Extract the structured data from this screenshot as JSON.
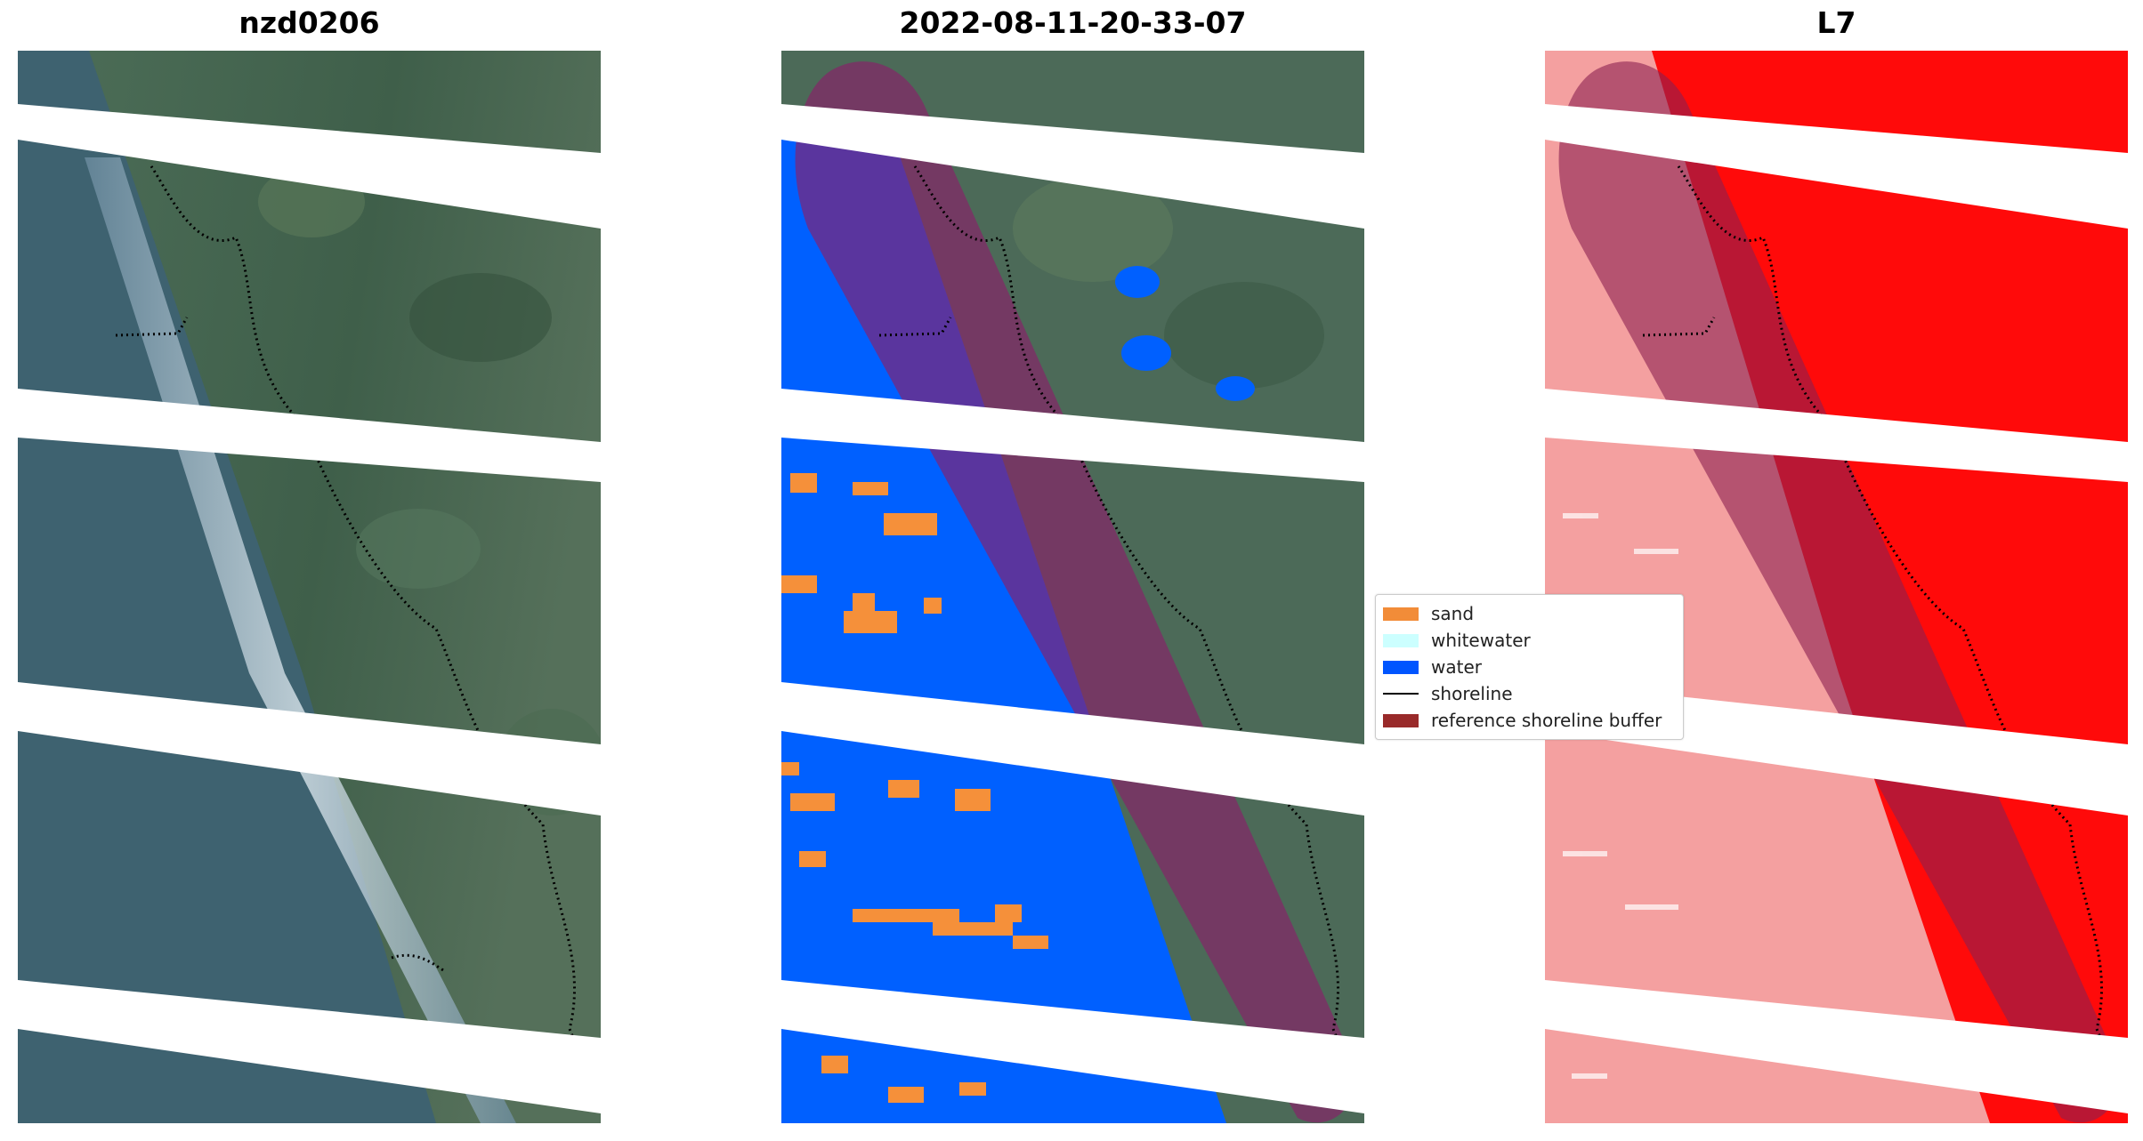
{
  "panels": [
    {
      "title": "nzd0206",
      "kind": "rgb"
    },
    {
      "title": "2022-08-11-20-33-07",
      "kind": "classified"
    },
    {
      "title": "L7",
      "kind": "index"
    }
  ],
  "legend": {
    "placement": "center",
    "items": [
      {
        "label": "sand",
        "type": "patch",
        "color": "#f28c38"
      },
      {
        "label": "whitewater",
        "type": "patch",
        "color": "#ccffff"
      },
      {
        "label": "water",
        "type": "patch",
        "color": "#0055ff"
      },
      {
        "label": "shoreline",
        "type": "line",
        "color": "#000000"
      },
      {
        "label": "reference shoreline buffer",
        "type": "patch",
        "color": "#992a2a"
      }
    ]
  },
  "colors": {
    "rgb_land": "#4a6a52",
    "rgb_water": "#3e6270",
    "rgb_surf": "#d8e4ec",
    "nodata": "#ffffff",
    "class_land": "#4c6a58",
    "class_water": "#0060ff",
    "class_sand": "#f5903a",
    "buffer": "#8b1f6a",
    "index_land": "#ff0a0a",
    "index_water": "#f4a0a0",
    "index_buffer": "#8b1f50"
  }
}
